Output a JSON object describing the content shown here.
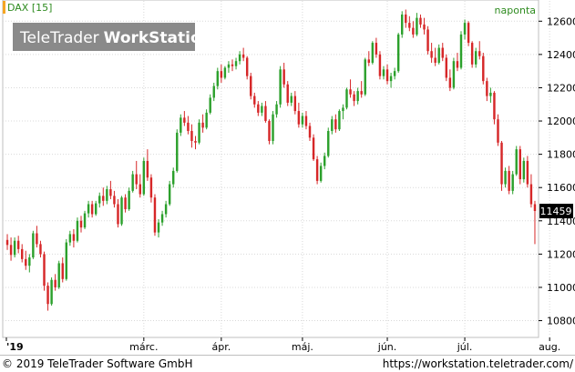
{
  "chart_data": {
    "type": "candlestick",
    "symbol_label": "DAX [15]",
    "interval_label": "naponta",
    "watermark": {
      "brand_light": "TeleTrader",
      "brand_bold": "WorkStation"
    },
    "last_value_label": "11459",
    "y_ticks": [
      10800,
      11000,
      11200,
      11400,
      11600,
      11800,
      12000,
      12200,
      12400,
      12600
    ],
    "ylim": [
      10710,
      12700
    ],
    "x_ticks": [
      {
        "label": "'19",
        "index": 0
      },
      {
        "label": "márc.",
        "index": 37
      },
      {
        "label": "ápr.",
        "index": 58
      },
      {
        "label": "máj.",
        "index": 80
      },
      {
        "label": "jún.",
        "index": 103
      },
      {
        "label": "júl.",
        "index": 124
      },
      {
        "label": "aug.",
        "index": 147
      }
    ],
    "ohlc": [
      [
        11285,
        11320,
        11225,
        11255
      ],
      [
        11255,
        11300,
        11160,
        11195
      ],
      [
        11195,
        11300,
        11180,
        11280
      ],
      [
        11280,
        11310,
        11205,
        11230
      ],
      [
        11230,
        11260,
        11150,
        11170
      ],
      [
        11170,
        11220,
        11105,
        11130
      ],
      [
        11130,
        11200,
        11090,
        11180
      ],
      [
        11180,
        11340,
        11170,
        11325
      ],
      [
        11325,
        11370,
        11240,
        11260
      ],
      [
        11260,
        11280,
        11180,
        11200
      ],
      [
        11200,
        11215,
        10980,
        11010
      ],
      [
        11010,
        11030,
        10860,
        10900
      ],
      [
        10900,
        11060,
        10890,
        11045
      ],
      [
        11045,
        11080,
        10980,
        11000
      ],
      [
        11000,
        11160,
        10990,
        11145
      ],
      [
        11145,
        11180,
        11030,
        11050
      ],
      [
        11050,
        11290,
        11040,
        11270
      ],
      [
        11270,
        11340,
        11250,
        11320
      ],
      [
        11320,
        11350,
        11240,
        11280
      ],
      [
        11280,
        11420,
        11270,
        11400
      ],
      [
        11400,
        11430,
        11330,
        11360
      ],
      [
        11360,
        11460,
        11350,
        11445
      ],
      [
        11445,
        11520,
        11420,
        11500
      ],
      [
        11500,
        11520,
        11420,
        11440
      ],
      [
        11440,
        11520,
        11430,
        11505
      ],
      [
        11505,
        11570,
        11480,
        11550
      ],
      [
        11550,
        11600,
        11490,
        11520
      ],
      [
        11520,
        11610,
        11500,
        11590
      ],
      [
        11590,
        11640,
        11530,
        11550
      ],
      [
        11550,
        11580,
        11480,
        11500
      ],
      [
        11500,
        11530,
        11360,
        11380
      ],
      [
        11380,
        11550,
        11370,
        11540
      ],
      [
        11540,
        11560,
        11450,
        11470
      ],
      [
        11470,
        11600,
        11460,
        11580
      ],
      [
        11580,
        11700,
        11570,
        11680
      ],
      [
        11680,
        11760,
        11590,
        11620
      ],
      [
        11620,
        11680,
        11540,
        11560
      ],
      [
        11560,
        11780,
        11550,
        11760
      ],
      [
        11760,
        11830,
        11640,
        11660
      ],
      [
        11660,
        11680,
        11510,
        11540
      ],
      [
        11540,
        11560,
        11310,
        11330
      ],
      [
        11330,
        11410,
        11300,
        11390
      ],
      [
        11390,
        11460,
        11370,
        11440
      ],
      [
        11440,
        11520,
        11420,
        11500
      ],
      [
        11500,
        11640,
        11490,
        11620
      ],
      [
        11620,
        11720,
        11600,
        11700
      ],
      [
        11700,
        11950,
        11690,
        11930
      ],
      [
        11930,
        12040,
        11910,
        12020
      ],
      [
        12020,
        12060,
        11970,
        11990
      ],
      [
        11990,
        12030,
        11920,
        11940
      ],
      [
        11940,
        11980,
        11840,
        11880
      ],
      [
        11880,
        11910,
        11830,
        11870
      ],
      [
        11870,
        12010,
        11860,
        11990
      ],
      [
        11990,
        12040,
        11930,
        11960
      ],
      [
        11960,
        12070,
        11950,
        12050
      ],
      [
        12050,
        12160,
        12040,
        12140
      ],
      [
        12140,
        12230,
        12120,
        12210
      ],
      [
        12210,
        12320,
        12190,
        12300
      ],
      [
        12300,
        12340,
        12230,
        12260
      ],
      [
        12260,
        12330,
        12250,
        12320
      ],
      [
        12320,
        12360,
        12290,
        12340
      ],
      [
        12340,
        12370,
        12300,
        12330
      ],
      [
        12330,
        12380,
        12310,
        12360
      ],
      [
        12360,
        12420,
        12340,
        12400
      ],
      [
        12400,
        12440,
        12360,
        12380
      ],
      [
        12380,
        12390,
        12250,
        12270
      ],
      [
        12270,
        12290,
        12130,
        12150
      ],
      [
        12150,
        12170,
        12080,
        12100
      ],
      [
        12100,
        12120,
        12030,
        12050
      ],
      [
        12050,
        12110,
        12030,
        12090
      ],
      [
        12090,
        12120,
        11990,
        12000
      ],
      [
        12000,
        12010,
        11860,
        11880
      ],
      [
        11880,
        12060,
        11860,
        12040
      ],
      [
        12040,
        12120,
        12020,
        12100
      ],
      [
        12100,
        12330,
        12080,
        12310
      ],
      [
        12310,
        12350,
        12200,
        12220
      ],
      [
        12220,
        12240,
        12090,
        12110
      ],
      [
        12110,
        12170,
        12090,
        12150
      ],
      [
        12150,
        12180,
        12040,
        12060
      ],
      [
        12060,
        12110,
        11960,
        11980
      ],
      [
        11980,
        12050,
        11960,
        12030
      ],
      [
        12030,
        12060,
        11950,
        11970
      ],
      [
        11970,
        11990,
        11880,
        11900
      ],
      [
        11900,
        11920,
        11760,
        11770
      ],
      [
        11770,
        11790,
        11620,
        11640
      ],
      [
        11640,
        11750,
        11630,
        11730
      ],
      [
        11730,
        11810,
        11710,
        11790
      ],
      [
        11790,
        11960,
        11780,
        11940
      ],
      [
        11940,
        12030,
        11920,
        12010
      ],
      [
        12010,
        12040,
        11930,
        11950
      ],
      [
        11950,
        12070,
        11940,
        12060
      ],
      [
        12060,
        12100,
        12010,
        12080
      ],
      [
        12080,
        12200,
        12070,
        12190
      ],
      [
        12190,
        12250,
        12140,
        12160
      ],
      [
        12160,
        12180,
        12090,
        12120
      ],
      [
        12120,
        12200,
        12100,
        12180
      ],
      [
        12180,
        12240,
        12140,
        12160
      ],
      [
        12160,
        12380,
        12150,
        12370
      ],
      [
        12370,
        12420,
        12330,
        12350
      ],
      [
        12350,
        12480,
        12340,
        12470
      ],
      [
        12470,
        12500,
        12380,
        12400
      ],
      [
        12400,
        12420,
        12250,
        12270
      ],
      [
        12270,
        12330,
        12250,
        12310
      ],
      [
        12310,
        12340,
        12220,
        12240
      ],
      [
        12240,
        12290,
        12200,
        12270
      ],
      [
        12270,
        12320,
        12250,
        12300
      ],
      [
        12300,
        12530,
        12290,
        12520
      ],
      [
        12520,
        12660,
        12500,
        12640
      ],
      [
        12640,
        12670,
        12560,
        12590
      ],
      [
        12590,
        12630,
        12540,
        12560
      ],
      [
        12560,
        12600,
        12500,
        12520
      ],
      [
        12520,
        12650,
        12510,
        12620
      ],
      [
        12620,
        12640,
        12560,
        12580
      ],
      [
        12580,
        12620,
        12520,
        12550
      ],
      [
        12550,
        12570,
        12400,
        12420
      ],
      [
        12420,
        12470,
        12350,
        12380
      ],
      [
        12380,
        12440,
        12330,
        12350
      ],
      [
        12350,
        12460,
        12340,
        12440
      ],
      [
        12440,
        12470,
        12360,
        12380
      ],
      [
        12380,
        12400,
        12240,
        12260
      ],
      [
        12260,
        12310,
        12180,
        12200
      ],
      [
        12200,
        12380,
        12190,
        12360
      ],
      [
        12360,
        12410,
        12300,
        12320
      ],
      [
        12320,
        12540,
        12310,
        12520
      ],
      [
        12520,
        12610,
        12490,
        12590
      ],
      [
        12590,
        12600,
        12450,
        12470
      ],
      [
        12470,
        12480,
        12320,
        12340
      ],
      [
        12340,
        12440,
        12320,
        12420
      ],
      [
        12420,
        12480,
        12370,
        12390
      ],
      [
        12390,
        12410,
        12220,
        12240
      ],
      [
        12240,
        12260,
        12120,
        12150
      ],
      [
        12150,
        12200,
        12110,
        12170
      ],
      [
        12170,
        12180,
        11980,
        12010
      ],
      [
        12010,
        12040,
        11850,
        11870
      ],
      [
        11870,
        11880,
        11580,
        11620
      ],
      [
        11620,
        11720,
        11600,
        11700
      ],
      [
        11700,
        11730,
        11560,
        11580
      ],
      [
        11580,
        11700,
        11560,
        11680
      ],
      [
        11680,
        11850,
        11670,
        11830
      ],
      [
        11830,
        11850,
        11620,
        11650
      ],
      [
        11650,
        11780,
        11630,
        11760
      ],
      [
        11760,
        11790,
        11600,
        11620
      ],
      [
        11620,
        11680,
        11480,
        11500
      ],
      [
        11500,
        11520,
        11260,
        11459
      ]
    ]
  },
  "footer": {
    "copyright": "© 2019 TeleTrader Software GmbH",
    "url": "https://workstation.teletrader.com/"
  }
}
